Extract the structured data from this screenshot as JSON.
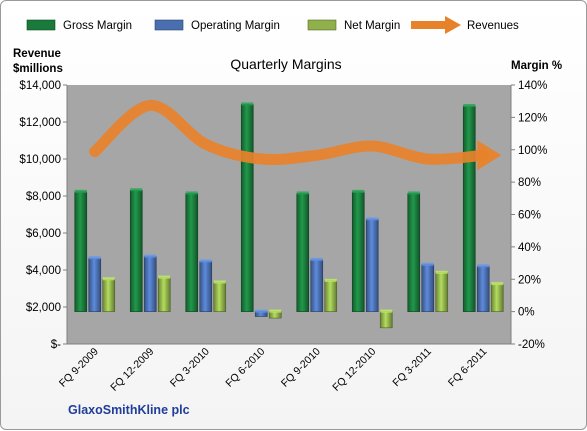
{
  "chart_data": {
    "type": "bar",
    "title": "Quarterly Margins",
    "company": "GlaxoSmithKline plc",
    "left_axis_label_line1": "Revenue",
    "left_axis_label_line2": "$millions",
    "right_axis_label": "Margin %",
    "left_axis": {
      "min": 0,
      "max": 14000,
      "step": 2000,
      "tick_labels": [
        "$-",
        "$2,000",
        "$4,000",
        "$6,000",
        "$8,000",
        "$10,000",
        "$12,000",
        "$14,000"
      ]
    },
    "right_axis": {
      "min": -20,
      "max": 140,
      "step": 20,
      "tick_labels": [
        "-20%",
        "0%",
        "20%",
        "40%",
        "60%",
        "80%",
        "100%",
        "120%",
        "140%"
      ]
    },
    "categories": [
      "FQ 9-2009",
      "FQ 12-2009",
      "FQ 3-2010",
      "FQ 6-2010",
      "FQ 9-2010",
      "FQ 12-2010",
      "FQ 3-2011",
      "FQ 6-2011"
    ],
    "series": [
      {
        "name": "Gross Margin",
        "kind": "bar",
        "axis": "right",
        "color": "#1a7a3c",
        "values": [
          74,
          75,
          73,
          128,
          73,
          74,
          73,
          127
        ]
      },
      {
        "name": "Operating Margin",
        "kind": "bar",
        "axis": "right",
        "color": "#4a6fb0",
        "values": [
          33,
          34,
          31,
          -3,
          32,
          57,
          29,
          28
        ]
      },
      {
        "name": "Net Margin",
        "kind": "bar",
        "axis": "right",
        "color": "#8fb04a",
        "values": [
          20,
          21,
          18,
          -4,
          19,
          -10,
          24,
          17
        ]
      },
      {
        "name": "Revenues",
        "kind": "line",
        "axis": "left",
        "color": "#e8822a",
        "values": [
          10400,
          12900,
          10800,
          10000,
          10200,
          10700,
          10000,
          10200
        ]
      }
    ],
    "plot_background": "#a6a6a6",
    "legend_position": "top",
    "grid": false
  }
}
